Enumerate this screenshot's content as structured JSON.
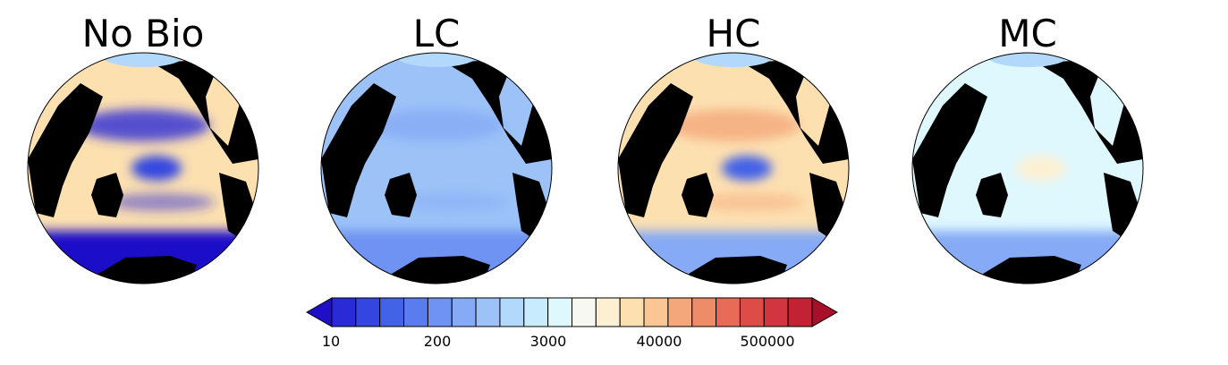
{
  "chart_data": {
    "type": "heatmap",
    "projection": "orthographic globe centred on the Pacific Ocean",
    "panels": [
      {
        "title": "No Bio",
        "dominant_class": 13,
        "hotspot_class": 2,
        "north_class": 1,
        "south_class": 0
      },
      {
        "title": "LC",
        "dominant_class": 7,
        "hotspot_class": 7,
        "north_class": 6,
        "south_class": 5
      },
      {
        "title": "HC",
        "dominant_class": 13,
        "hotspot_class": 3,
        "north_class": 15,
        "south_class": 6
      },
      {
        "title": "MC",
        "dominant_class": 10,
        "hotspot_class": 12,
        "north_class": 10,
        "south_class": 6
      }
    ],
    "colorbar": {
      "scale": "log",
      "tick_labels": [
        "10",
        "200",
        "3000",
        "40000",
        "500000"
      ],
      "num_classes": 22,
      "extend": "both",
      "colors": [
        "#1f0fc9",
        "#2a2ad6",
        "#3546e0",
        "#4262e8",
        "#5a7cee",
        "#6e93f2",
        "#86aaf5",
        "#9cc2f8",
        "#b2d8fb",
        "#c8ebfd",
        "#dff8fe",
        "#f6f8f1",
        "#fdf0d2",
        "#fde0b0",
        "#fac693",
        "#f4a77b",
        "#ee8b68",
        "#e76b56",
        "#de4c47",
        "#d23540",
        "#c12234",
        "#a8102a"
      ]
    }
  }
}
